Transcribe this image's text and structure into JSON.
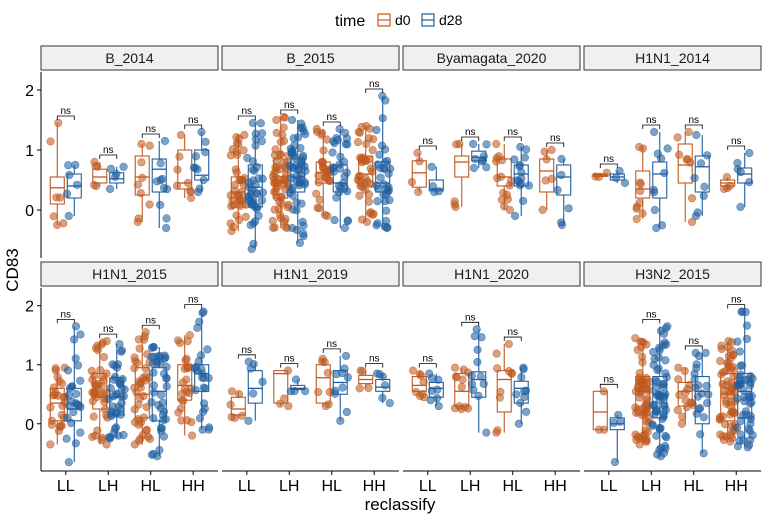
{
  "chart_data": {
    "type": "box-jitter",
    "title": "",
    "ylabel": "CD83",
    "xlabel": "reclassify",
    "legend": {
      "title": "time",
      "position": "top",
      "entries": [
        {
          "label": "d0",
          "color": "#c0591f"
        },
        {
          "label": "d28",
          "color": "#1f5fa0"
        }
      ]
    },
    "categories": [
      "LL",
      "LH",
      "HL",
      "HH"
    ],
    "ylim": [
      -0.8,
      2.3
    ],
    "yticks": [
      0,
      1,
      2
    ],
    "significance_label": "ns",
    "grid": false,
    "panels": [
      {
        "name": "B_2014",
        "groups": [
          {
            "cat": "LL",
            "d0": [
              -0.25,
              0.1,
              0.37,
              0.55,
              1.45
            ],
            "d28": [
              -0.1,
              0.2,
              0.4,
              0.6,
              0.75
            ],
            "n0": 7,
            "n28": 6,
            "sig": "ns"
          },
          {
            "cat": "LH",
            "d0": [
              0.4,
              0.45,
              0.55,
              0.68,
              0.8
            ],
            "d28": [
              0.35,
              0.45,
              0.52,
              0.62,
              0.72
            ],
            "n0": 5,
            "n28": 5,
            "sig": "ns"
          },
          {
            "cat": "HL",
            "d0": [
              -0.2,
              0.25,
              0.55,
              0.9,
              1.1
            ],
            "d28": [
              -0.3,
              0.3,
              0.68,
              0.85,
              1.15
            ],
            "n0": 9,
            "n28": 10,
            "sig": "ns"
          },
          {
            "cat": "HH",
            "d0": [
              0.2,
              0.35,
              0.45,
              1.0,
              1.25
            ],
            "d28": [
              0.3,
              0.5,
              0.58,
              1.0,
              1.3
            ],
            "n0": 8,
            "n28": 10,
            "sig": "ns"
          }
        ]
      },
      {
        "name": "B_2015",
        "groups": [
          {
            "cat": "LL",
            "d0": [
              -0.35,
              0.05,
              0.3,
              0.55,
              1.25
            ],
            "d28": [
              -0.65,
              0.05,
              0.38,
              0.75,
              1.45
            ],
            "n0": 40,
            "n28": 40,
            "sig": "ns"
          },
          {
            "cat": "LH",
            "d0": [
              -0.3,
              0.2,
              0.55,
              0.85,
              1.55
            ],
            "d28": [
              -0.55,
              0.3,
              0.55,
              0.85,
              1.5
            ],
            "n0": 60,
            "n28": 55,
            "sig": "ns"
          },
          {
            "cat": "HL",
            "d0": [
              -0.1,
              0.45,
              0.62,
              0.8,
              1.35
            ],
            "d28": [
              -0.3,
              0.3,
              0.45,
              0.75,
              1.35
            ],
            "n0": 30,
            "n28": 30,
            "sig": "ns"
          },
          {
            "cat": "HH",
            "d0": [
              -0.2,
              0.4,
              0.6,
              0.9,
              1.4
            ],
            "d28": [
              -0.3,
              0.3,
              0.45,
              0.8,
              1.9
            ],
            "n0": 40,
            "n28": 35,
            "sig": "ns"
          }
        ]
      },
      {
        "name": "Byamagata_2020",
        "groups": [
          {
            "cat": "LL",
            "d0": [
              0.3,
              0.38,
              0.62,
              0.82,
              0.95
            ],
            "d28": [
              0.3,
              0.32,
              0.35,
              0.5,
              0.72
            ],
            "n0": 4,
            "n28": 4,
            "sig": "ns"
          },
          {
            "cat": "LH",
            "d0": [
              0.05,
              0.55,
              0.8,
              0.9,
              1.1
            ],
            "d28": [
              0.7,
              0.82,
              0.88,
              0.98,
              1.1
            ],
            "n0": 5,
            "n28": 8,
            "sig": "ns"
          },
          {
            "cat": "HL",
            "d0": [
              0.0,
              0.4,
              0.55,
              0.85,
              1.1
            ],
            "d28": [
              -0.1,
              0.4,
              0.6,
              0.75,
              1.05
            ],
            "n0": 15,
            "n28": 15,
            "sig": "ns"
          },
          {
            "cat": "HH",
            "d0": [
              0.0,
              0.3,
              0.65,
              0.85,
              1.0
            ],
            "d28": [
              -0.25,
              0.25,
              0.55,
              0.75,
              0.85
            ],
            "n0": 6,
            "n28": 6,
            "sig": "ns"
          }
        ]
      },
      {
        "name": "H1N1_2014",
        "groups": [
          {
            "cat": "LL",
            "d0": [
              0.55,
              0.56,
              0.58,
              0.6,
              0.62
            ],
            "d28": [
              0.45,
              0.5,
              0.55,
              0.6,
              0.65
            ],
            "n0": 3,
            "n28": 3,
            "sig": "ns"
          },
          {
            "cat": "LH",
            "d0": [
              -0.15,
              0.2,
              0.35,
              0.65,
              1.05
            ],
            "d28": [
              -0.3,
              0.2,
              0.6,
              0.8,
              1.3
            ],
            "n0": 10,
            "n28": 10,
            "sig": "ns"
          },
          {
            "cat": "HL",
            "d0": [
              -0.2,
              0.45,
              0.75,
              1.1,
              1.3
            ],
            "d28": [
              -0.1,
              0.3,
              0.72,
              0.9,
              1.25
            ],
            "n0": 8,
            "n28": 8,
            "sig": "ns"
          },
          {
            "cat": "HH",
            "d0": [
              0.35,
              0.4,
              0.45,
              0.5,
              0.55
            ],
            "d28": [
              0.05,
              0.45,
              0.6,
              0.7,
              0.95
            ],
            "n0": 4,
            "n28": 6,
            "sig": "ns"
          }
        ]
      },
      {
        "name": "H1N1_2015",
        "groups": [
          {
            "cat": "LL",
            "d0": [
              -0.35,
              0.05,
              0.35,
              0.6,
              0.95
            ],
            "d28": [
              -0.65,
              0.05,
              0.25,
              0.6,
              1.65
            ],
            "n0": 25,
            "n28": 25,
            "sig": "ns"
          },
          {
            "cat": "LH",
            "d0": [
              -0.35,
              0.25,
              0.45,
              0.85,
              1.4
            ],
            "d28": [
              -0.25,
              0.15,
              0.45,
              0.78,
              1.35
            ],
            "n0": 40,
            "n28": 40,
            "sig": "ns"
          },
          {
            "cat": "HL",
            "d0": [
              -0.35,
              0.1,
              0.5,
              0.95,
              1.55
            ],
            "d28": [
              -0.55,
              0.05,
              0.55,
              0.95,
              1.3
            ],
            "n0": 40,
            "n28": 40,
            "sig": "ns"
          },
          {
            "cat": "HH",
            "d0": [
              -0.2,
              0.4,
              0.65,
              1.0,
              1.5
            ],
            "d28": [
              -0.1,
              0.55,
              0.85,
              1.0,
              1.9
            ],
            "n0": 25,
            "n28": 25,
            "sig": "ns"
          }
        ]
      },
      {
        "name": "H1N1_2019",
        "groups": [
          {
            "cat": "LL",
            "d0": [
              0.1,
              0.15,
              0.25,
              0.45,
              0.55
            ],
            "d28": [
              0.05,
              0.35,
              0.6,
              0.9,
              1.05
            ],
            "n0": 6,
            "n28": 6,
            "sig": "ns"
          },
          {
            "cat": "LH",
            "d0": [
              0.3,
              0.35,
              0.85,
              0.9,
              0.9
            ],
            "d28": [
              0.55,
              0.58,
              0.6,
              0.65,
              0.75
            ],
            "n0": 4,
            "n28": 4,
            "sig": "ns"
          },
          {
            "cat": "HL",
            "d0": [
              0.3,
              0.35,
              0.78,
              1.0,
              1.1
            ],
            "d28": [
              0.05,
              0.5,
              0.7,
              0.9,
              1.15
            ],
            "n0": 8,
            "n28": 10,
            "sig": "ns"
          },
          {
            "cat": "HH",
            "d0": [
              0.6,
              0.68,
              0.75,
              0.82,
              0.9
            ],
            "d28": [
              0.35,
              0.55,
              0.62,
              0.75,
              0.85
            ],
            "n0": 4,
            "n28": 6,
            "sig": "ns"
          }
        ]
      },
      {
        "name": "H1N1_2020",
        "groups": [
          {
            "cat": "LL",
            "d0": [
              0.45,
              0.55,
              0.65,
              0.8,
              0.9
            ],
            "d28": [
              0.3,
              0.45,
              0.6,
              0.7,
              0.85
            ],
            "n0": 8,
            "n28": 8,
            "sig": "ns"
          },
          {
            "cat": "LH",
            "d0": [
              0.25,
              0.3,
              0.55,
              0.85,
              0.95
            ],
            "d28": [
              -0.15,
              0.45,
              0.75,
              0.88,
              1.6
            ],
            "n0": 12,
            "n28": 12,
            "sig": "ns"
          },
          {
            "cat": "HL",
            "d0": [
              -0.15,
              0.2,
              0.75,
              0.9,
              1.35
            ],
            "d28": [
              0.0,
              0.35,
              0.6,
              0.72,
              0.95
            ],
            "n0": 10,
            "n28": 10,
            "sig": "ns"
          }
        ]
      },
      {
        "name": "H3N2_2015",
        "groups": [
          {
            "cat": "LL",
            "d0": [
              -0.1,
              -0.1,
              0.2,
              0.55,
              0.55
            ],
            "d28": [
              -0.65,
              -0.1,
              0.0,
              0.1,
              0.15
            ],
            "n0": 3,
            "n28": 4,
            "sig": "ns"
          },
          {
            "cat": "LH",
            "d0": [
              -0.35,
              0.15,
              0.55,
              0.8,
              1.45
            ],
            "d28": [
              -0.55,
              0.1,
              0.5,
              0.8,
              1.65
            ],
            "n0": 60,
            "n28": 60,
            "sig": "ns"
          },
          {
            "cat": "HL",
            "d0": [
              0.0,
              0.3,
              0.55,
              0.7,
              0.95
            ],
            "d28": [
              -0.5,
              0.0,
              0.55,
              0.8,
              1.2
            ],
            "n0": 15,
            "n28": 20,
            "sig": "ns"
          },
          {
            "cat": "HH",
            "d0": [
              -0.3,
              0.05,
              0.5,
              0.85,
              1.4
            ],
            "d28": [
              -0.4,
              0.1,
              0.55,
              0.85,
              1.9
            ],
            "n0": 60,
            "n28": 50,
            "sig": "ns"
          }
        ]
      }
    ]
  }
}
